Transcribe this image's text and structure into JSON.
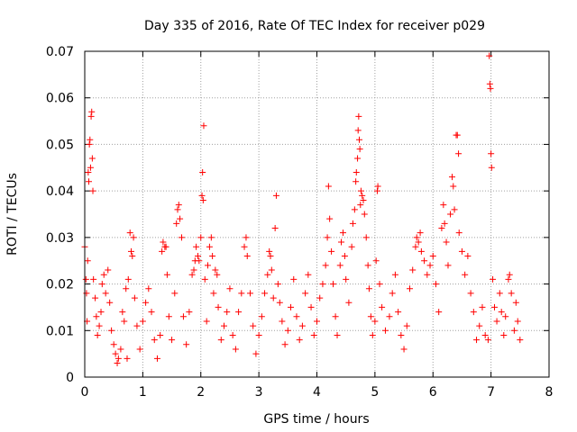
{
  "chart_data": {
    "type": "scatter",
    "title": "Day 335 of 2016, Rate Of TEC Index for receiver p029",
    "xlabel": "GPS time / hours",
    "ylabel": "ROTI / TECUs",
    "xlim": [
      0,
      8
    ],
    "ylim": [
      0,
      0.07
    ],
    "xticks": [
      "0",
      "1",
      "2",
      "3",
      "4",
      "5",
      "6",
      "7",
      "8"
    ],
    "yticks": [
      "0",
      "0.01",
      "0.02",
      "0.03",
      "0.04",
      "0.05",
      "0.06",
      "0.07"
    ],
    "grid": true,
    "marker": "plus",
    "series": [
      {
        "name": "ROTI",
        "color": "#ff0000",
        "points": [
          [
            0.0,
            0.028
          ],
          [
            0.02,
            0.021
          ],
          [
            0.03,
            0.018
          ],
          [
            0.04,
            0.012
          ],
          [
            0.05,
            0.025
          ],
          [
            0.06,
            0.044
          ],
          [
            0.07,
            0.042
          ],
          [
            0.08,
            0.05
          ],
          [
            0.09,
            0.051
          ],
          [
            0.1,
            0.045
          ],
          [
            0.11,
            0.056
          ],
          [
            0.12,
            0.057
          ],
          [
            0.13,
            0.047
          ],
          [
            0.14,
            0.04
          ],
          [
            0.15,
            0.021
          ],
          [
            0.18,
            0.017
          ],
          [
            0.2,
            0.013
          ],
          [
            0.22,
            0.009
          ],
          [
            0.25,
            0.011
          ],
          [
            0.28,
            0.014
          ],
          [
            0.3,
            0.02
          ],
          [
            0.33,
            0.022
          ],
          [
            0.36,
            0.018
          ],
          [
            0.4,
            0.023
          ],
          [
            0.43,
            0.016
          ],
          [
            0.46,
            0.01
          ],
          [
            0.5,
            0.007
          ],
          [
            0.53,
            0.005
          ],
          [
            0.56,
            0.003
          ],
          [
            0.58,
            0.004
          ],
          [
            0.62,
            0.006
          ],
          [
            0.65,
            0.014
          ],
          [
            0.68,
            0.012
          ],
          [
            0.71,
            0.019
          ],
          [
            0.73,
            0.004
          ],
          [
            0.75,
            0.021
          ],
          [
            0.78,
            0.031
          ],
          [
            0.8,
            0.027
          ],
          [
            0.82,
            0.026
          ],
          [
            0.84,
            0.03
          ],
          [
            0.86,
            0.017
          ],
          [
            0.9,
            0.011
          ],
          [
            0.95,
            0.006
          ],
          [
            1.0,
            0.012
          ],
          [
            1.05,
            0.016
          ],
          [
            1.1,
            0.019
          ],
          [
            1.15,
            0.014
          ],
          [
            1.2,
            0.008
          ],
          [
            1.25,
            0.004
          ],
          [
            1.3,
            0.009
          ],
          [
            1.33,
            0.027
          ],
          [
            1.35,
            0.029
          ],
          [
            1.38,
            0.028
          ],
          [
            1.4,
            0.028
          ],
          [
            1.42,
            0.022
          ],
          [
            1.45,
            0.013
          ],
          [
            1.5,
            0.008
          ],
          [
            1.55,
            0.018
          ],
          [
            1.58,
            0.033
          ],
          [
            1.6,
            0.036
          ],
          [
            1.62,
            0.037
          ],
          [
            1.64,
            0.034
          ],
          [
            1.67,
            0.03
          ],
          [
            1.7,
            0.013
          ],
          [
            1.75,
            0.007
          ],
          [
            1.8,
            0.014
          ],
          [
            1.85,
            0.022
          ],
          [
            1.88,
            0.023
          ],
          [
            1.9,
            0.025
          ],
          [
            1.92,
            0.028
          ],
          [
            1.95,
            0.026
          ],
          [
            1.97,
            0.025
          ],
          [
            2.0,
            0.03
          ],
          [
            2.02,
            0.039
          ],
          [
            2.03,
            0.044
          ],
          [
            2.04,
            0.038
          ],
          [
            2.05,
            0.054
          ],
          [
            2.07,
            0.021
          ],
          [
            2.1,
            0.012
          ],
          [
            2.12,
            0.024
          ],
          [
            2.15,
            0.028
          ],
          [
            2.18,
            0.03
          ],
          [
            2.2,
            0.026
          ],
          [
            2.22,
            0.018
          ],
          [
            2.25,
            0.023
          ],
          [
            2.28,
            0.022
          ],
          [
            2.3,
            0.015
          ],
          [
            2.35,
            0.008
          ],
          [
            2.4,
            0.011
          ],
          [
            2.45,
            0.014
          ],
          [
            2.5,
            0.019
          ],
          [
            2.55,
            0.009
          ],
          [
            2.6,
            0.006
          ],
          [
            2.65,
            0.014
          ],
          [
            2.7,
            0.018
          ],
          [
            2.75,
            0.028
          ],
          [
            2.78,
            0.03
          ],
          [
            2.8,
            0.026
          ],
          [
            2.85,
            0.018
          ],
          [
            2.9,
            0.011
          ],
          [
            2.95,
            0.005
          ],
          [
            3.0,
            0.009
          ],
          [
            3.05,
            0.013
          ],
          [
            3.1,
            0.018
          ],
          [
            3.15,
            0.022
          ],
          [
            3.18,
            0.027
          ],
          [
            3.2,
            0.026
          ],
          [
            3.22,
            0.023
          ],
          [
            3.25,
            0.017
          ],
          [
            3.28,
            0.032
          ],
          [
            3.3,
            0.039
          ],
          [
            3.33,
            0.02
          ],
          [
            3.36,
            0.016
          ],
          [
            3.4,
            0.012
          ],
          [
            3.45,
            0.007
          ],
          [
            3.5,
            0.01
          ],
          [
            3.55,
            0.015
          ],
          [
            3.6,
            0.021
          ],
          [
            3.65,
            0.013
          ],
          [
            3.7,
            0.008
          ],
          [
            3.75,
            0.011
          ],
          [
            3.8,
            0.018
          ],
          [
            3.85,
            0.022
          ],
          [
            3.9,
            0.015
          ],
          [
            3.95,
            0.009
          ],
          [
            4.0,
            0.012
          ],
          [
            4.05,
            0.017
          ],
          [
            4.1,
            0.02
          ],
          [
            4.15,
            0.024
          ],
          [
            4.18,
            0.03
          ],
          [
            4.2,
            0.041
          ],
          [
            4.22,
            0.034
          ],
          [
            4.25,
            0.027
          ],
          [
            4.28,
            0.02
          ],
          [
            4.32,
            0.013
          ],
          [
            4.35,
            0.009
          ],
          [
            4.4,
            0.024
          ],
          [
            4.42,
            0.029
          ],
          [
            4.45,
            0.031
          ],
          [
            4.48,
            0.026
          ],
          [
            4.5,
            0.021
          ],
          [
            4.55,
            0.016
          ],
          [
            4.6,
            0.028
          ],
          [
            4.62,
            0.033
          ],
          [
            4.65,
            0.036
          ],
          [
            4.67,
            0.042
          ],
          [
            4.68,
            0.044
          ],
          [
            4.7,
            0.047
          ],
          [
            4.71,
            0.053
          ],
          [
            4.72,
            0.056
          ],
          [
            4.73,
            0.051
          ],
          [
            4.74,
            0.049
          ],
          [
            4.75,
            0.037
          ],
          [
            4.76,
            0.04
          ],
          [
            4.78,
            0.039
          ],
          [
            4.8,
            0.038
          ],
          [
            4.82,
            0.035
          ],
          [
            4.85,
            0.03
          ],
          [
            4.88,
            0.024
          ],
          [
            4.9,
            0.019
          ],
          [
            4.93,
            0.013
          ],
          [
            4.96,
            0.009
          ],
          [
            5.0,
            0.012
          ],
          [
            5.02,
            0.025
          ],
          [
            5.04,
            0.04
          ],
          [
            5.05,
            0.041
          ],
          [
            5.08,
            0.02
          ],
          [
            5.12,
            0.015
          ],
          [
            5.18,
            0.01
          ],
          [
            5.25,
            0.013
          ],
          [
            5.3,
            0.018
          ],
          [
            5.35,
            0.022
          ],
          [
            5.4,
            0.014
          ],
          [
            5.45,
            0.009
          ],
          [
            5.5,
            0.006
          ],
          [
            5.55,
            0.011
          ],
          [
            5.6,
            0.019
          ],
          [
            5.65,
            0.023
          ],
          [
            5.7,
            0.028
          ],
          [
            5.72,
            0.03
          ],
          [
            5.75,
            0.029
          ],
          [
            5.78,
            0.031
          ],
          [
            5.8,
            0.027
          ],
          [
            5.85,
            0.025
          ],
          [
            5.9,
            0.022
          ],
          [
            5.95,
            0.024
          ],
          [
            6.0,
            0.026
          ],
          [
            6.05,
            0.02
          ],
          [
            6.1,
            0.014
          ],
          [
            6.15,
            0.032
          ],
          [
            6.18,
            0.037
          ],
          [
            6.2,
            0.033
          ],
          [
            6.23,
            0.029
          ],
          [
            6.26,
            0.024
          ],
          [
            6.3,
            0.035
          ],
          [
            6.33,
            0.043
          ],
          [
            6.35,
            0.041
          ],
          [
            6.37,
            0.036
          ],
          [
            6.4,
            0.052
          ],
          [
            6.42,
            0.052
          ],
          [
            6.44,
            0.048
          ],
          [
            6.45,
            0.031
          ],
          [
            6.5,
            0.027
          ],
          [
            6.55,
            0.022
          ],
          [
            6.6,
            0.026
          ],
          [
            6.65,
            0.018
          ],
          [
            6.7,
            0.014
          ],
          [
            6.75,
            0.008
          ],
          [
            6.8,
            0.011
          ],
          [
            6.85,
            0.015
          ],
          [
            6.9,
            0.009
          ],
          [
            6.95,
            0.008
          ],
          [
            6.97,
            0.069
          ],
          [
            6.98,
            0.063
          ],
          [
            6.99,
            0.062
          ],
          [
            7.0,
            0.048
          ],
          [
            7.01,
            0.045
          ],
          [
            7.03,
            0.021
          ],
          [
            7.06,
            0.015
          ],
          [
            7.1,
            0.012
          ],
          [
            7.15,
            0.018
          ],
          [
            7.18,
            0.014
          ],
          [
            7.22,
            0.009
          ],
          [
            7.25,
            0.013
          ],
          [
            7.3,
            0.021
          ],
          [
            7.32,
            0.022
          ],
          [
            7.35,
            0.018
          ],
          [
            7.4,
            0.01
          ],
          [
            7.43,
            0.016
          ],
          [
            7.46,
            0.012
          ],
          [
            7.5,
            0.008
          ]
        ]
      }
    ]
  }
}
